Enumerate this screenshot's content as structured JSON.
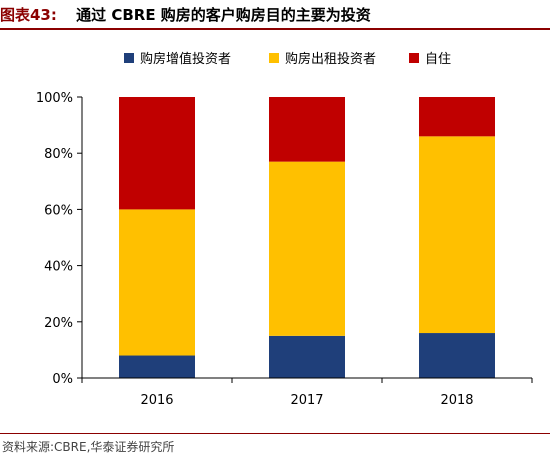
{
  "figure": {
    "label": "图表43:",
    "title": "通过 CBRE 购房的客户购房目的主要为投资",
    "source": "资料来源:CBRE,华泰证券研究所"
  },
  "chart_data": {
    "type": "bar",
    "stacked": true,
    "categories": [
      "2016",
      "2017",
      "2018"
    ],
    "series": [
      {
        "name": "购房增值投资者",
        "color": "#1F3F7A",
        "values": [
          8,
          15,
          16
        ]
      },
      {
        "name": "购房出租投资者",
        "color": "#FFC000",
        "values": [
          52,
          62,
          70
        ]
      },
      {
        "name": "自住",
        "color": "#C00000",
        "values": [
          40,
          23,
          14
        ]
      }
    ],
    "ylim": [
      0,
      100
    ],
    "yticks": [
      "0%",
      "20%",
      "40%",
      "60%",
      "80%",
      "100%"
    ],
    "xlabel": "",
    "ylabel": "",
    "grid": false,
    "legend_position": "top-center"
  }
}
